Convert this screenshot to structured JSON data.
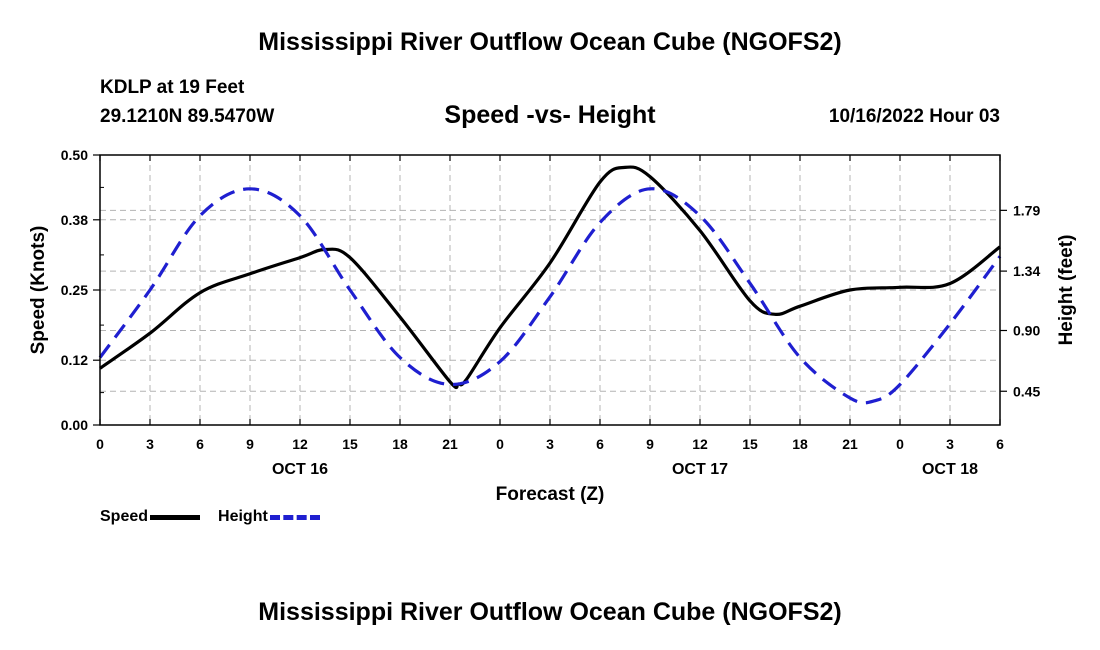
{
  "page": {
    "title": "Mississippi River Outflow Ocean Cube (NGOFS2)",
    "bottom_title": "Mississippi River Outflow Ocean Cube (NGOFS2)",
    "station": "KDLP at 19 Feet",
    "coordinates": "29.1210N  89.5470W",
    "subtitle": "Speed -vs- Height",
    "datetime": "10/16/2022 Hour 03"
  },
  "colors": {
    "speed": "#000000",
    "height": "#1f1fd0",
    "grid": "#b4b4b4"
  },
  "chart_data": {
    "type": "line",
    "title": "Speed -vs- Height",
    "xlabel": "Forecast (Z)",
    "ylabel": "Speed (Knots)",
    "y2label": "Height (feet)",
    "x_range": [
      0,
      54
    ],
    "x_ticks": [
      0,
      3,
      6,
      9,
      12,
      15,
      18,
      21,
      24,
      27,
      30,
      33,
      36,
      39,
      42,
      45,
      48,
      51,
      54
    ],
    "x_tick_labels": [
      "0",
      "3",
      "6",
      "9",
      "12",
      "15",
      "18",
      "21",
      "0",
      "3",
      "6",
      "9",
      "12",
      "15",
      "18",
      "21",
      "0",
      "3",
      "6"
    ],
    "date_labels": [
      {
        "x": 12,
        "label": "OCT 16"
      },
      {
        "x": 36,
        "label": "OCT 17"
      },
      {
        "x": 51,
        "label": "OCT 18"
      }
    ],
    "ylim": [
      0,
      0.5
    ],
    "y_ticks": [
      0.0,
      0.12,
      0.25,
      0.38,
      0.5
    ],
    "y_tick_labels": [
      "0.00",
      "0.12",
      "0.25",
      "0.38",
      "0.50"
    ],
    "y2lim": [
      0.2,
      2.2
    ],
    "y2_ticks": [
      0.45,
      0.9,
      1.34,
      1.79
    ],
    "y2_tick_labels": [
      "0.45",
      "0.90",
      "1.34",
      "1.79"
    ],
    "grid": true,
    "series": [
      {
        "name": "Speed",
        "axis": "left",
        "style": "solid",
        "x": [
          0,
          3,
          6,
          9,
          12,
          13.5,
          15,
          18,
          21,
          21.5,
          22,
          24,
          27,
          30,
          31.5,
          33,
          36,
          39,
          40.5,
          42,
          45,
          48,
          51,
          54
        ],
        "values": [
          0.105,
          0.17,
          0.245,
          0.28,
          0.31,
          0.325,
          0.31,
          0.2,
          0.08,
          0.076,
          0.085,
          0.18,
          0.3,
          0.45,
          0.477,
          0.46,
          0.36,
          0.23,
          0.205,
          0.22,
          0.25,
          0.255,
          0.262,
          0.33
        ]
      },
      {
        "name": "Height",
        "axis": "right",
        "style": "dashed",
        "x": [
          0,
          3,
          6,
          9,
          12,
          15,
          18,
          21,
          24,
          27,
          30,
          33,
          36,
          39,
          42,
          45,
          46.5,
          48,
          51,
          54
        ],
        "values": [
          0.7,
          1.2,
          1.75,
          1.95,
          1.75,
          1.2,
          0.7,
          0.5,
          0.67,
          1.15,
          1.7,
          1.95,
          1.75,
          1.25,
          0.7,
          0.4,
          0.38,
          0.5,
          0.95,
          1.45
        ]
      }
    ],
    "legend": [
      {
        "label": "Speed"
      },
      {
        "label": "Height"
      }
    ]
  }
}
